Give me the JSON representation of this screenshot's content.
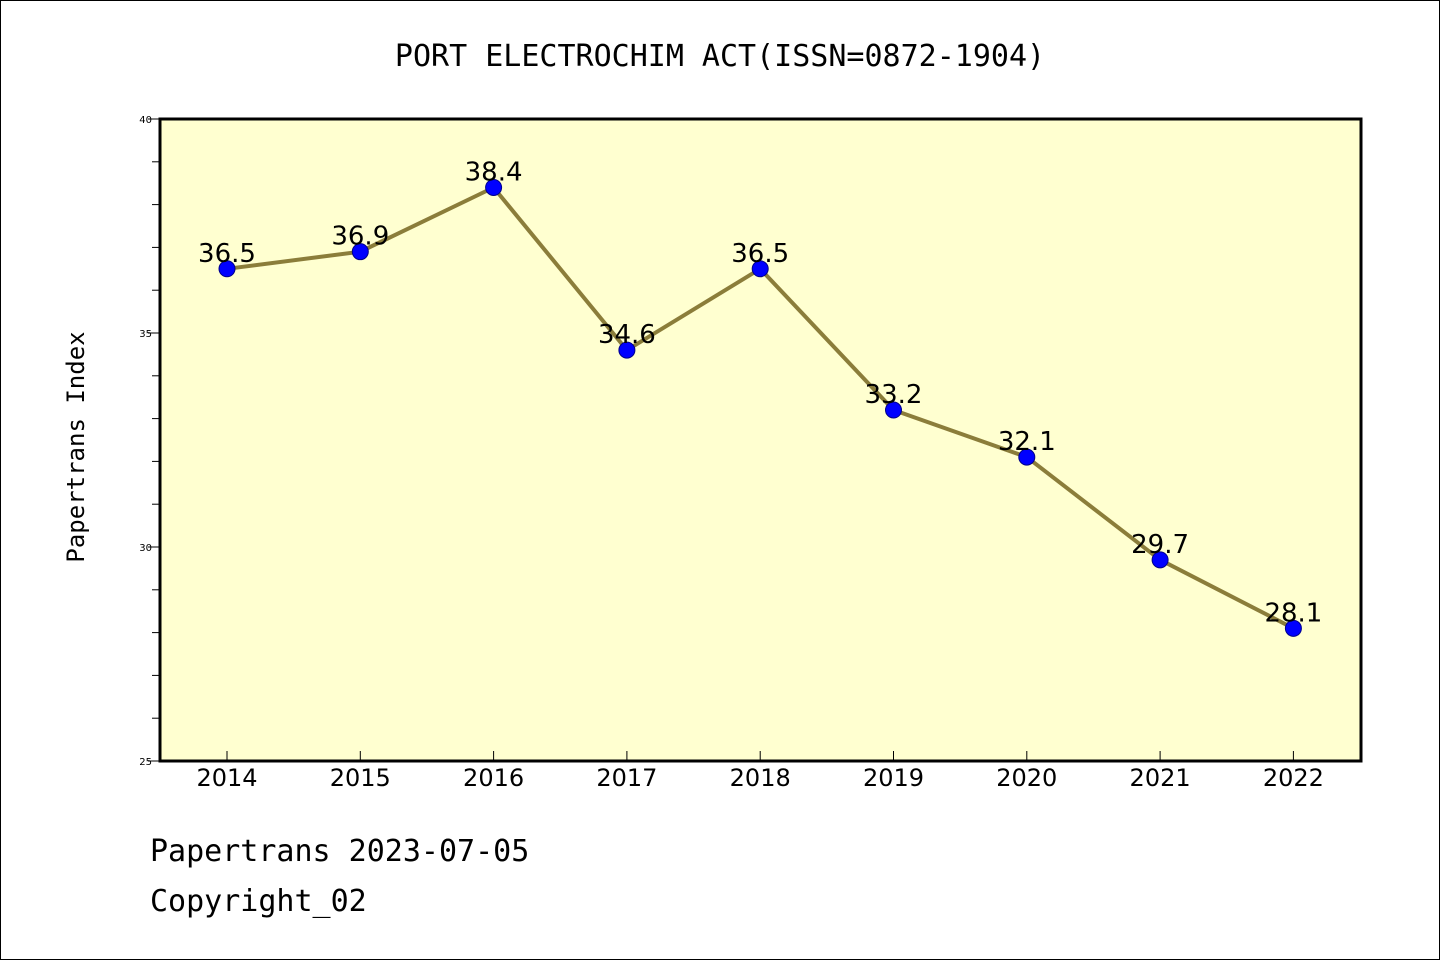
{
  "chart_data": {
    "type": "line",
    "title": "PORT ELECTROCHIM ACT(ISSN=0872-1904)",
    "xlabel": "",
    "ylabel": "Papertrans Index",
    "categories": [
      "2014",
      "2015",
      "2016",
      "2017",
      "2018",
      "2019",
      "2020",
      "2021",
      "2022"
    ],
    "series": [
      {
        "values": [
          36.5,
          36.9,
          38.4,
          34.6,
          36.5,
          33.2,
          32.1,
          29.7,
          28.1
        ]
      }
    ],
    "data_labels": [
      "36.5",
      "36.9",
      "38.4",
      "34.6",
      "36.5",
      "33.2",
      "32.1",
      "29.7",
      "28.1"
    ],
    "ylim": [
      25,
      40
    ],
    "yticks": [
      25,
      30,
      35,
      40
    ],
    "ytick_labels": [
      "25",
      "30",
      "35",
      "40"
    ],
    "grid": false,
    "legend": "none",
    "colors": {
      "plot_background": "#ffffd0",
      "line": "#8b7d3a",
      "marker": "#0000ff"
    }
  },
  "footer": {
    "line1": "Papertrans 2023-07-05",
    "line2": "Copyright_02"
  }
}
